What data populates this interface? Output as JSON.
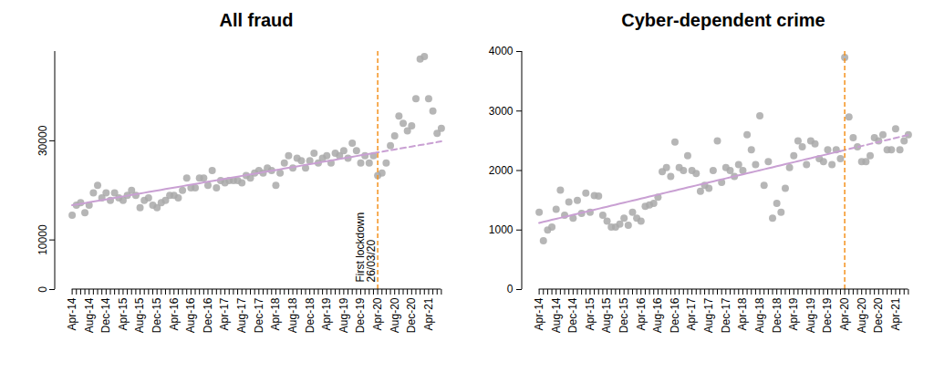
{
  "chart_data": [
    {
      "type": "scatter",
      "title": "All fraud",
      "categories": [
        "Apr-14",
        null,
        null,
        null,
        "Aug-14",
        null,
        null,
        null,
        "Dec-14",
        null,
        null,
        null,
        "Apr-15",
        null,
        null,
        null,
        "Aug-15",
        null,
        null,
        null,
        "Dec-15",
        null,
        null,
        null,
        "Apr-16",
        null,
        null,
        null,
        "Aug-16",
        null,
        null,
        null,
        "Dec-16",
        null,
        null,
        null,
        "Apr-17",
        null,
        null,
        null,
        "Aug-17",
        null,
        null,
        null,
        "Dec-17",
        null,
        null,
        null,
        "Apr-18",
        null,
        null,
        null,
        "Aug-18",
        null,
        null,
        null,
        "Dec-18",
        null,
        null,
        null,
        "Apr-19",
        null,
        null,
        null,
        "Aug-19",
        null,
        null,
        null,
        "Dec-19",
        null,
        null,
        null,
        "Apr-20",
        null,
        null,
        null,
        "Aug-20",
        null,
        null,
        null,
        "Dec-20",
        null,
        null,
        null,
        "Apr-21",
        null,
        null,
        null
      ],
      "series": [
        {
          "type": "scatter",
          "marker": "circle",
          "color": "#a9a9a9",
          "values": [
            15000,
            17000,
            17500,
            15500,
            17000,
            19500,
            21000,
            18500,
            19500,
            18000,
            19500,
            18500,
            18000,
            19000,
            20000,
            19000,
            16500,
            18000,
            18500,
            17000,
            16500,
            17500,
            18000,
            19000,
            19000,
            18500,
            20000,
            22500,
            20500,
            20500,
            22500,
            22500,
            21000,
            24000,
            20500,
            22000,
            21500,
            22000,
            22000,
            22000,
            21500,
            23000,
            22500,
            23500,
            24000,
            23500,
            24500,
            24000,
            21000,
            23500,
            25500,
            27000,
            24500,
            26500,
            26000,
            24500,
            26000,
            27500,
            25500,
            26500,
            27000,
            25500,
            27500,
            27000,
            28000,
            26500,
            29500,
            28000,
            25500,
            27000,
            25500,
            27000,
            23000,
            23500,
            25500,
            29000,
            31000,
            35000,
            33500,
            32000,
            33000,
            38500,
            46500,
            47000,
            38500,
            36000,
            31500,
            32500
          ]
        },
        {
          "type": "line",
          "line_style": "solid",
          "color": "#c9a0d3",
          "values": [
            17000,
            17150,
            17300,
            17440,
            17590,
            17740,
            17890,
            18040,
            18180,
            18330,
            18480,
            18630,
            18780,
            18920,
            19070,
            19220,
            19370,
            19520,
            19660,
            19810,
            19960,
            20110,
            20260,
            20400,
            20550,
            20700,
            20850,
            21000,
            21140,
            21290,
            21440,
            21590,
            21740,
            21880,
            22030,
            22180,
            22330,
            22480,
            22620,
            22770,
            22920,
            23070,
            23220,
            23360,
            23510,
            23660,
            23810,
            23960,
            24100,
            24250,
            24400,
            24550,
            24700,
            24840,
            24990,
            25140,
            25290,
            25440,
            25580,
            25730,
            25880,
            26030,
            26180,
            26320,
            26470,
            26620,
            26770,
            26920,
            27060,
            27210,
            27360,
            27510,
            null,
            null,
            null,
            null,
            null,
            null,
            null,
            null,
            null,
            null,
            null,
            null,
            null,
            null,
            null,
            null
          ]
        },
        {
          "type": "line",
          "line_style": "dashed",
          "color": "#c9a0d3",
          "values": [
            null,
            null,
            null,
            null,
            null,
            null,
            null,
            null,
            null,
            null,
            null,
            null,
            null,
            null,
            null,
            null,
            null,
            null,
            null,
            null,
            null,
            null,
            null,
            null,
            null,
            null,
            null,
            null,
            null,
            null,
            null,
            null,
            null,
            null,
            null,
            null,
            null,
            null,
            null,
            null,
            null,
            null,
            null,
            null,
            null,
            null,
            null,
            null,
            null,
            null,
            null,
            null,
            null,
            null,
            null,
            null,
            null,
            null,
            null,
            null,
            null,
            null,
            null,
            null,
            null,
            null,
            null,
            null,
            null,
            null,
            null,
            27510,
            27660,
            27800,
            27950,
            28100,
            28250,
            28400,
            28540,
            28690,
            28840,
            28990,
            29140,
            29280,
            29430,
            29580,
            29730,
            29880
          ]
        }
      ],
      "annotations": [
        {
          "x": "Apr-20",
          "text": [
            "First lockdown",
            "26/03/20"
          ]
        }
      ],
      "ylim": [
        0,
        48000
      ],
      "yticks": [
        0,
        10000,
        30000
      ],
      "grid": false
    },
    {
      "type": "scatter",
      "title": "Cyber-dependent crime",
      "categories": [
        "Apr-14",
        null,
        null,
        null,
        "Aug-14",
        null,
        null,
        null,
        "Dec-14",
        null,
        null,
        null,
        "Apr-15",
        null,
        null,
        null,
        "Aug-15",
        null,
        null,
        null,
        "Dec-15",
        null,
        null,
        null,
        "Apr-16",
        null,
        null,
        null,
        "Aug-16",
        null,
        null,
        null,
        "Dec-16",
        null,
        null,
        null,
        "Apr-17",
        null,
        null,
        null,
        "Aug-17",
        null,
        null,
        null,
        "Dec-17",
        null,
        null,
        null,
        "Apr-18",
        null,
        null,
        null,
        "Aug-18",
        null,
        null,
        null,
        "Dec-18",
        null,
        null,
        null,
        "Apr-19",
        null,
        null,
        null,
        "Aug-19",
        null,
        null,
        null,
        "Dec-19",
        null,
        null,
        null,
        "Apr-20",
        null,
        null,
        null,
        "Aug-20",
        null,
        null,
        null,
        "Dec-20",
        null,
        null,
        null,
        "Apr-21",
        null,
        null,
        null
      ],
      "series": [
        {
          "type": "scatter",
          "marker": "circle",
          "color": "#a9a9a9",
          "values": [
            1300,
            820,
            1000,
            1050,
            1350,
            1670,
            1250,
            1470,
            1200,
            1500,
            1280,
            1620,
            1300,
            1580,
            1570,
            1250,
            1150,
            1050,
            1050,
            1100,
            1200,
            1080,
            1300,
            1200,
            1150,
            1400,
            1420,
            1450,
            1550,
            1980,
            2050,
            1900,
            2480,
            2050,
            2000,
            2250,
            2000,
            1950,
            1650,
            1750,
            1700,
            2000,
            2500,
            1800,
            2050,
            2000,
            1900,
            2100,
            2000,
            2600,
            2350,
            2100,
            2920,
            1750,
            2150,
            1200,
            1450,
            1300,
            1700,
            2050,
            2250,
            2500,
            2400,
            2100,
            2500,
            2450,
            2200,
            2150,
            2350,
            2100,
            2350,
            2200,
            3900,
            2900,
            2550,
            2400,
            2150,
            2150,
            2250,
            2550,
            2500,
            2600,
            2350,
            2350,
            2700,
            2350,
            2500,
            2600
          ]
        },
        {
          "type": "line",
          "line_style": "solid",
          "color": "#c9a0d3",
          "values": [
            1120,
            1137,
            1154,
            1171,
            1188,
            1205,
            1222,
            1239,
            1256,
            1273,
            1290,
            1307,
            1324,
            1341,
            1358,
            1375,
            1392,
            1409,
            1426,
            1443,
            1460,
            1477,
            1494,
            1511,
            1528,
            1545,
            1562,
            1579,
            1596,
            1613,
            1630,
            1647,
            1664,
            1681,
            1698,
            1715,
            1732,
            1749,
            1766,
            1783,
            1800,
            1817,
            1834,
            1851,
            1868,
            1885,
            1902,
            1919,
            1936,
            1953,
            1970,
            1987,
            2004,
            2021,
            2038,
            2055,
            2072,
            2089,
            2106,
            2123,
            2140,
            2157,
            2174,
            2191,
            2208,
            2225,
            2242,
            2259,
            2276,
            2293,
            2310,
            2327,
            null,
            null,
            null,
            null,
            null,
            null,
            null,
            null,
            null,
            null,
            null,
            null,
            null,
            null,
            null,
            null
          ]
        },
        {
          "type": "line",
          "line_style": "dashed",
          "color": "#c9a0d3",
          "values": [
            null,
            null,
            null,
            null,
            null,
            null,
            null,
            null,
            null,
            null,
            null,
            null,
            null,
            null,
            null,
            null,
            null,
            null,
            null,
            null,
            null,
            null,
            null,
            null,
            null,
            null,
            null,
            null,
            null,
            null,
            null,
            null,
            null,
            null,
            null,
            null,
            null,
            null,
            null,
            null,
            null,
            null,
            null,
            null,
            null,
            null,
            null,
            null,
            null,
            null,
            null,
            null,
            null,
            null,
            null,
            null,
            null,
            null,
            null,
            null,
            null,
            null,
            null,
            null,
            null,
            null,
            null,
            null,
            null,
            null,
            null,
            2327,
            2344,
            2361,
            2378,
            2395,
            2412,
            2429,
            2446,
            2463,
            2480,
            2497,
            2514,
            2531,
            2548,
            2565,
            2582,
            2599
          ]
        }
      ],
      "annotations": [
        {
          "x": "Apr-20"
        }
      ],
      "ylim": [
        0,
        4000
      ],
      "yticks": [
        0,
        1000,
        2000,
        3000,
        4000
      ],
      "grid": false
    }
  ]
}
